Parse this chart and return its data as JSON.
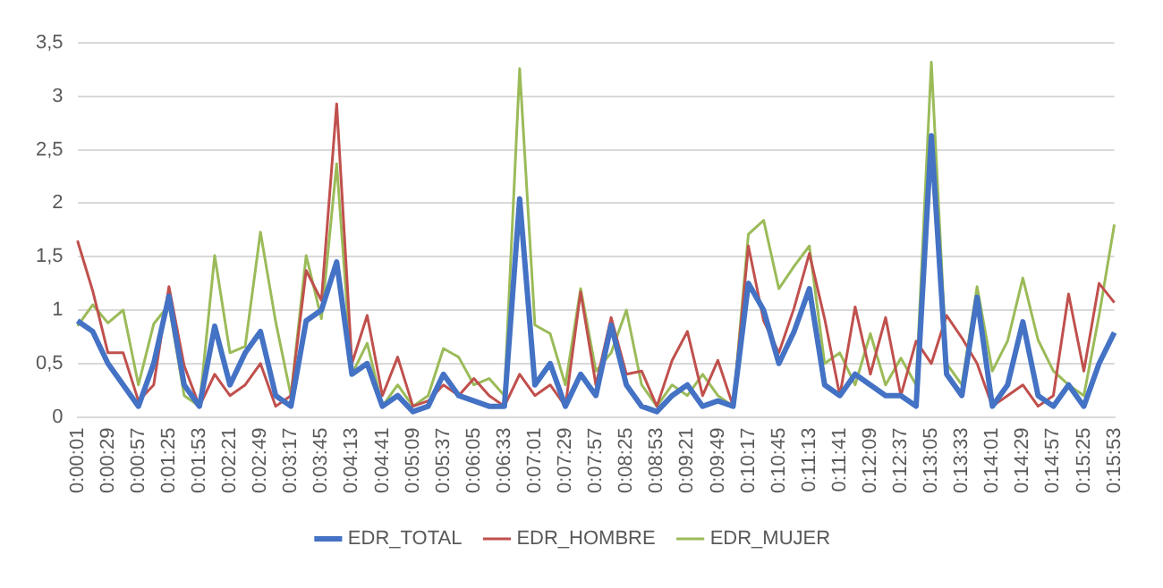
{
  "chart_data": {
    "type": "line",
    "categories": [
      "0:00:01",
      null,
      "0:00:29",
      null,
      "0:00:57",
      null,
      "0:01:25",
      null,
      "0:01:53",
      null,
      "0:02:21",
      null,
      "0:02:49",
      null,
      "0:03:17",
      null,
      "0:03:45",
      null,
      "0:04:13",
      null,
      "0:04:41",
      null,
      "0:05:09",
      null,
      "0:05:37",
      null,
      "0:06:05",
      null,
      "0:06:33",
      null,
      "0:07:01",
      null,
      "0:07:29",
      null,
      "0:07:57",
      null,
      "0:08:25",
      null,
      "0:08:53",
      null,
      "0:09:21",
      null,
      "0:09:49",
      null,
      "0:10:17",
      null,
      "0:10:45",
      null,
      "0:11:13",
      null,
      "0:11:41",
      null,
      "0:12:09",
      null,
      "0:12:37",
      null,
      "0:13:05",
      null,
      "0:13:33",
      null,
      "0:14:01",
      null,
      "0:14:29",
      null,
      "0:14:57",
      null,
      "0:15:25",
      null,
      "0:15:53"
    ],
    "series": [
      {
        "name": "EDR_TOTAL",
        "color": "#4472c4",
        "values": [
          0.9,
          0.8,
          0.5,
          0.3,
          0.1,
          0.5,
          1.13,
          0.3,
          0.1,
          0.85,
          0.3,
          0.6,
          0.8,
          0.2,
          0.1,
          0.9,
          1.0,
          1.45,
          0.4,
          0.5,
          0.1,
          0.2,
          0.05,
          0.1,
          0.4,
          0.2,
          0.15,
          0.1,
          0.1,
          2.04,
          0.3,
          0.5,
          0.1,
          0.4,
          0.2,
          0.86,
          0.3,
          0.1,
          0.05,
          0.2,
          0.3,
          0.1,
          0.15,
          0.1,
          1.25,
          1.0,
          0.5,
          0.8,
          1.2,
          0.3,
          0.2,
          0.4,
          0.3,
          0.2,
          0.2,
          0.1,
          2.63,
          0.4,
          0.2,
          1.12,
          0.1,
          0.3,
          0.89,
          0.2,
          0.1,
          0.3,
          0.1,
          0.5,
          0.79
        ]
      },
      {
        "name": "EDR_HOMBRE",
        "color": "#c0504d",
        "values": [
          1.65,
          1.18,
          0.6,
          0.6,
          0.15,
          0.3,
          1.22,
          0.48,
          0.1,
          0.4,
          0.2,
          0.3,
          0.5,
          0.1,
          0.2,
          1.37,
          1.09,
          2.93,
          0.5,
          0.95,
          0.2,
          0.56,
          0.1,
          0.15,
          0.3,
          0.2,
          0.36,
          0.2,
          0.1,
          0.4,
          0.2,
          0.3,
          0.1,
          1.17,
          0.3,
          0.93,
          0.4,
          0.43,
          0.1,
          0.53,
          0.8,
          0.2,
          0.53,
          0.1,
          1.6,
          0.9,
          0.6,
          1.02,
          1.53,
          0.92,
          0.2,
          1.03,
          0.4,
          0.93,
          0.2,
          0.71,
          0.5,
          0.95,
          0.74,
          0.5,
          0.1,
          0.2,
          0.3,
          0.1,
          0.2,
          1.15,
          0.43,
          1.25,
          1.07
        ]
      },
      {
        "name": "EDR_MUJER",
        "color": "#9bbb59",
        "values": [
          0.85,
          1.05,
          0.88,
          1.0,
          0.3,
          0.87,
          1.05,
          0.2,
          0.1,
          1.51,
          0.6,
          0.66,
          1.73,
          0.89,
          0.2,
          1.51,
          0.92,
          2.37,
          0.4,
          0.69,
          0.1,
          0.3,
          0.1,
          0.2,
          0.64,
          0.56,
          0.3,
          0.36,
          0.2,
          3.26,
          0.86,
          0.78,
          0.3,
          1.2,
          0.43,
          0.6,
          1.0,
          0.3,
          0.1,
          0.3,
          0.2,
          0.4,
          0.2,
          0.1,
          1.71,
          1.84,
          1.2,
          1.41,
          1.6,
          0.5,
          0.6,
          0.3,
          0.78,
          0.3,
          0.55,
          0.3,
          3.32,
          0.5,
          0.3,
          1.22,
          0.43,
          0.71,
          1.3,
          0.72,
          0.43,
          0.3,
          0.2,
          0.95,
          1.8
        ]
      }
    ],
    "ylim": [
      0,
      3.5
    ],
    "yticks": [
      0,
      {
        "value": 0.5,
        "label": "0,5"
      },
      1,
      {
        "value": 1.5,
        "label": "1,5"
      },
      2,
      {
        "value": 2.5,
        "label": "2,5"
      },
      3,
      {
        "value": 3.5,
        "label": "3,5"
      }
    ],
    "grid": "y",
    "legend": "bottom",
    "marker": "none",
    "line_style": "solid"
  }
}
